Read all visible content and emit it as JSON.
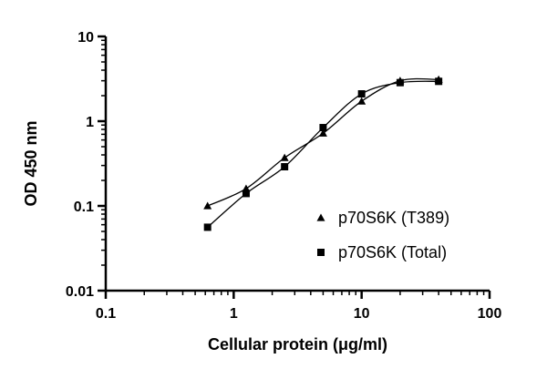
{
  "chart_data": {
    "type": "scatter",
    "xlabel": "Cellular protein (μg/ml)",
    "ylabel": "OD 450 nm",
    "xscale": "log",
    "yscale": "log",
    "xlim": [
      0.1,
      100
    ],
    "ylim": [
      0.01,
      10
    ],
    "x_ticks": [
      "0.1",
      "1",
      "10",
      "100"
    ],
    "y_ticks": [
      "0.01",
      "0.1",
      "1",
      "10"
    ],
    "grid": false,
    "legend": "bottom-right",
    "series": [
      {
        "name": "p70S6K (T389)",
        "marker": "triangle",
        "x": [
          0.625,
          1.25,
          2.5,
          5,
          10,
          20,
          40
        ],
        "y": [
          0.1,
          0.16,
          0.37,
          0.72,
          1.72,
          3.0,
          3.1
        ]
      },
      {
        "name": "p70S6K (Total)",
        "marker": "square",
        "x": [
          0.625,
          1.25,
          2.5,
          5,
          10,
          20,
          40
        ],
        "y": [
          0.056,
          0.14,
          0.29,
          0.84,
          2.1,
          2.85,
          2.95
        ]
      }
    ],
    "color": "#000000"
  }
}
